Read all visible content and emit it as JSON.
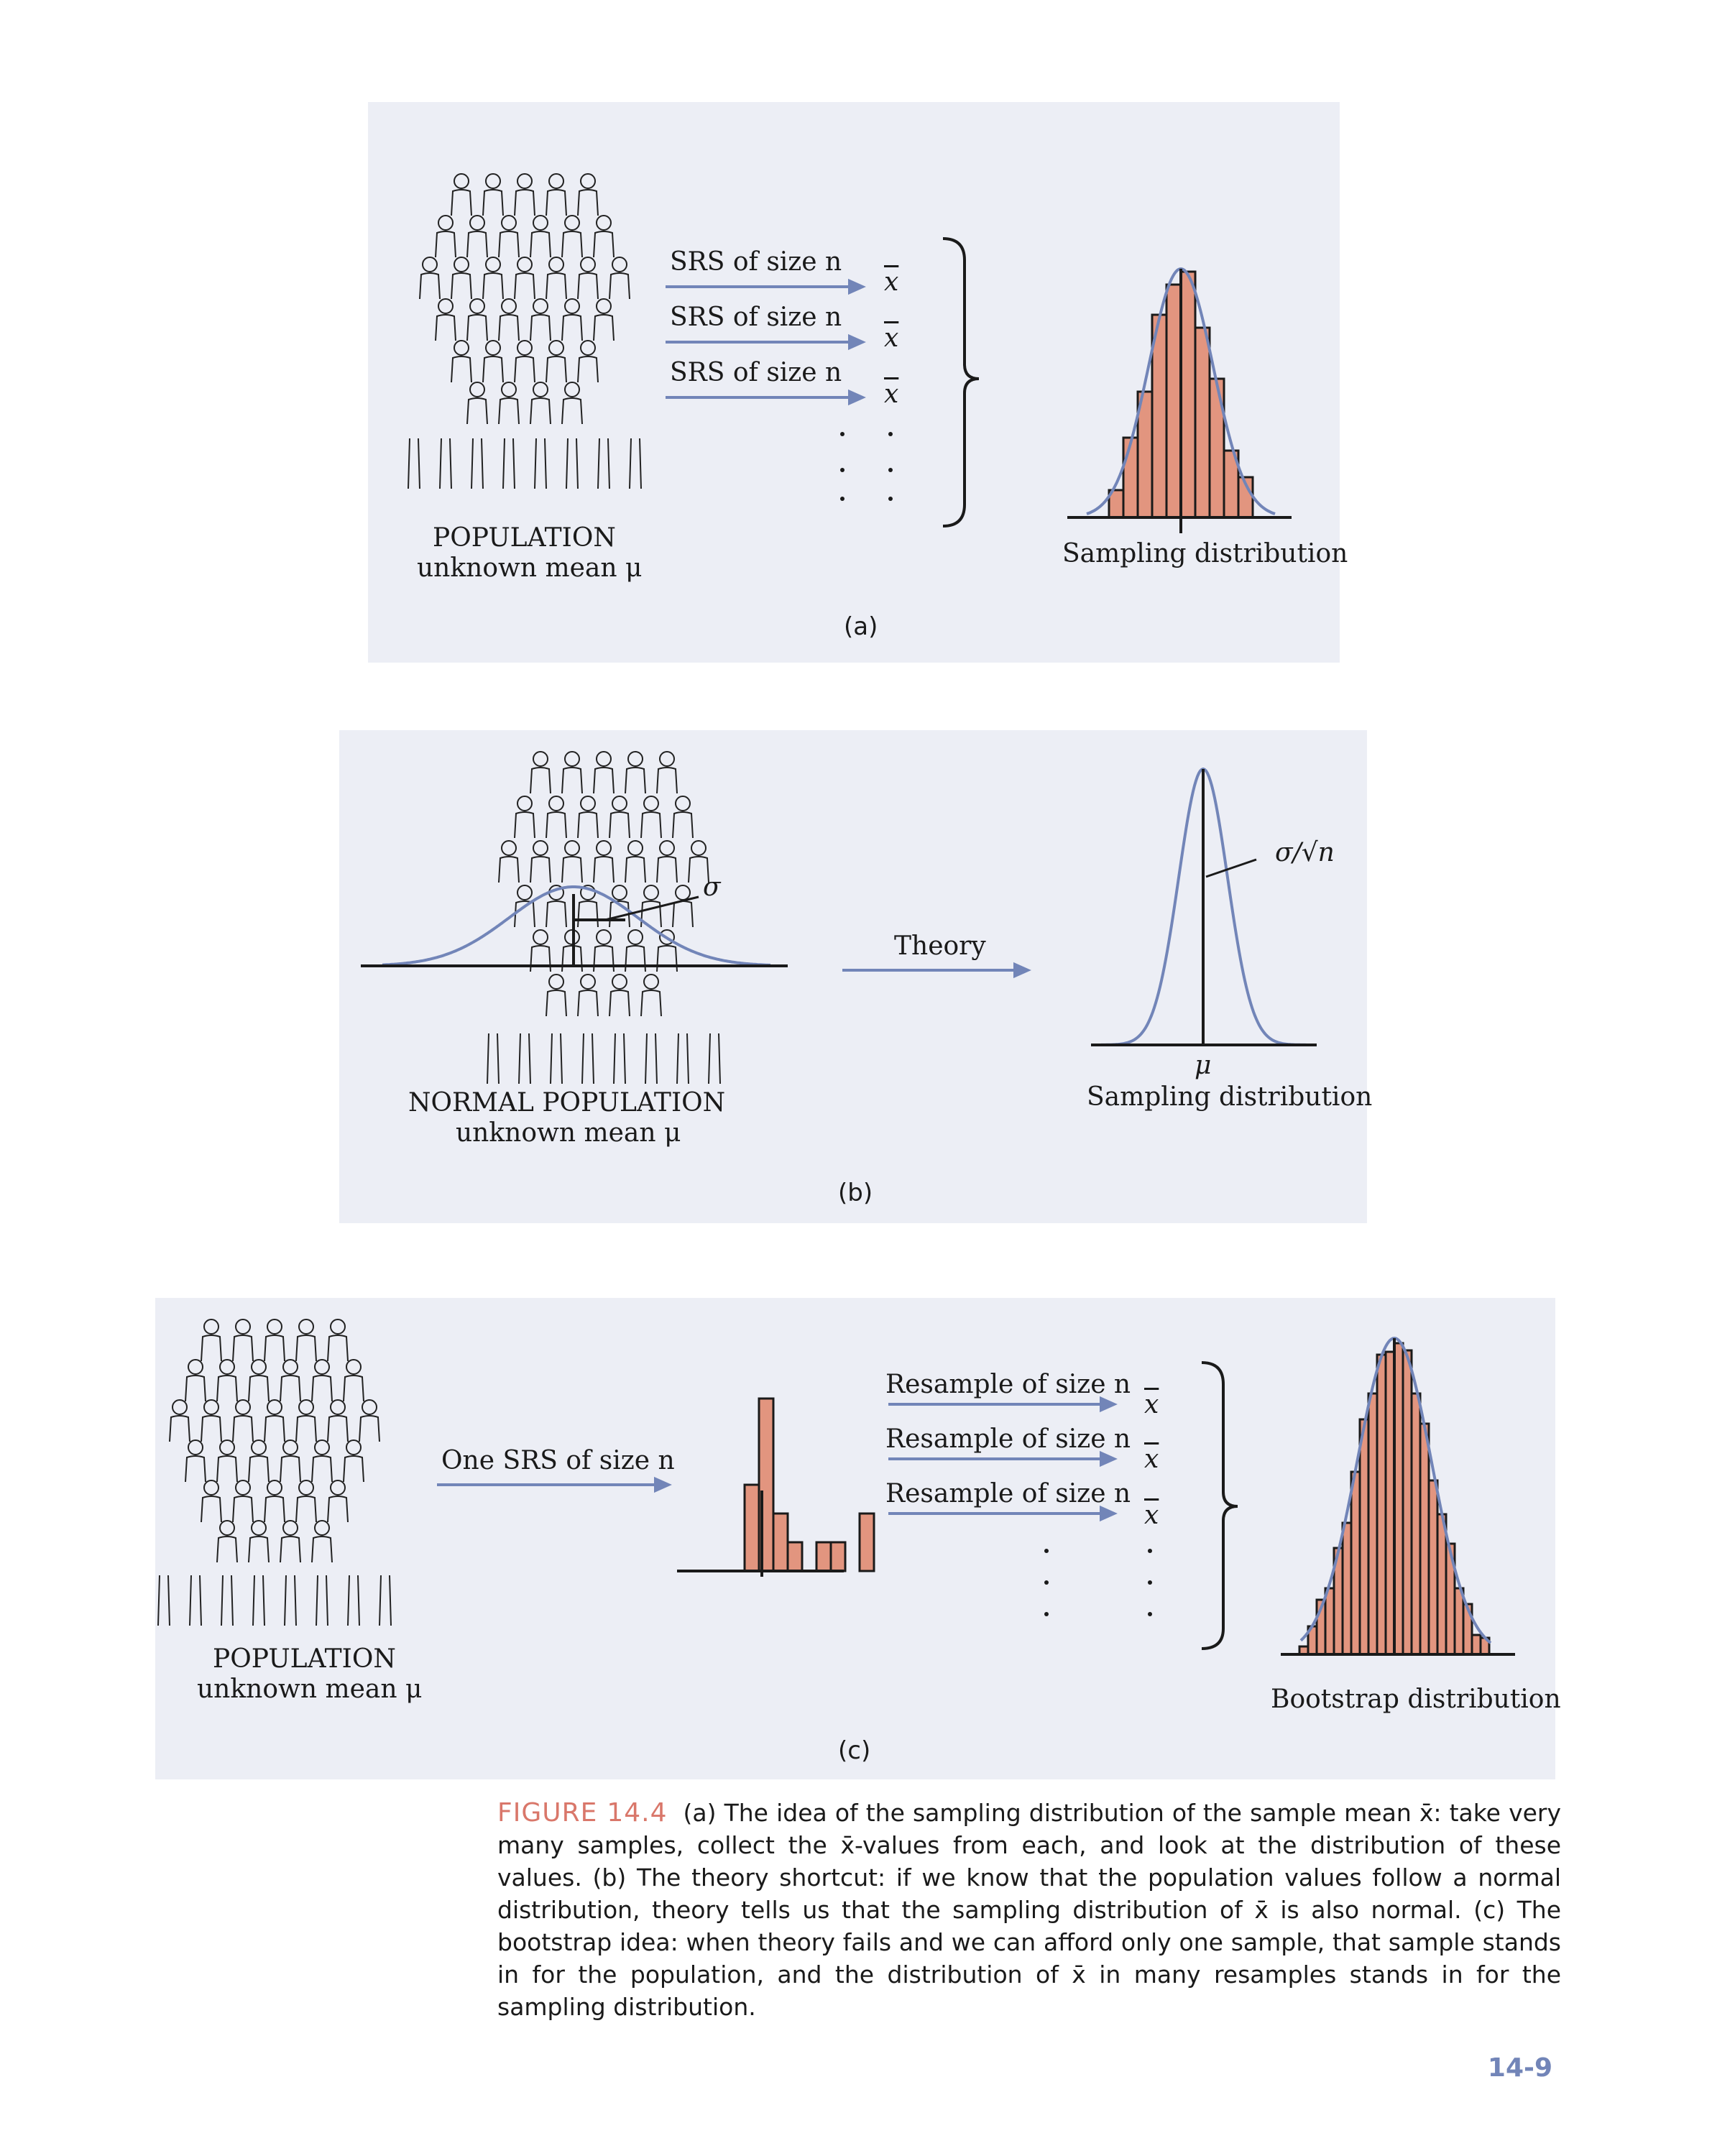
{
  "panel_a": {
    "srs_labels": [
      "SRS of size n",
      "SRS of size n",
      "SRS of size n"
    ],
    "xbar_symbol": "x",
    "population_title": "POPULATION",
    "population_subtitle": "unknown mean μ",
    "dist_label": "Sampling distribution",
    "panel_label": "(a)",
    "colors": {
      "histogram": "#e2957f",
      "curve": "#7285b8",
      "arrow": "#7285b8",
      "panel_bg": "#eceef5"
    }
  },
  "panel_b": {
    "sigma_label": "σ",
    "sigma_over_root_n": "σ/√n",
    "theory_label": "Theory",
    "mu_label": "μ",
    "population_title": "NORMAL POPULATION",
    "population_subtitle": "unknown mean μ",
    "dist_label": "Sampling distribution",
    "panel_label": "(b)"
  },
  "panel_c": {
    "one_srs_label": "One SRS of size n",
    "resample_labels": [
      "Resample of size n",
      "Resample of size n",
      "Resample of size n"
    ],
    "xbar_symbol": "x",
    "population_title": "POPULATION",
    "population_subtitle": "unknown mean μ",
    "dist_label": "Bootstrap distribution",
    "panel_label": "(c)"
  },
  "caption": {
    "figure_number": "FIGURE 14.4",
    "text": "(a) The idea of the sampling distribution of the sample mean x̄: take very many samples, collect the x̄-values from each, and look at the distribution of these values. (b) The theory shortcut: if we know that the population values follow a normal distribution, theory tells us that the sampling distribution of x̄ is also normal. (c) The bootstrap idea: when theory fails and we can afford only one sample, that sample stands in for the population, and the distribution of x̄ in many resamples stands in for the sampling distribution."
  },
  "page_number": "14-9"
}
